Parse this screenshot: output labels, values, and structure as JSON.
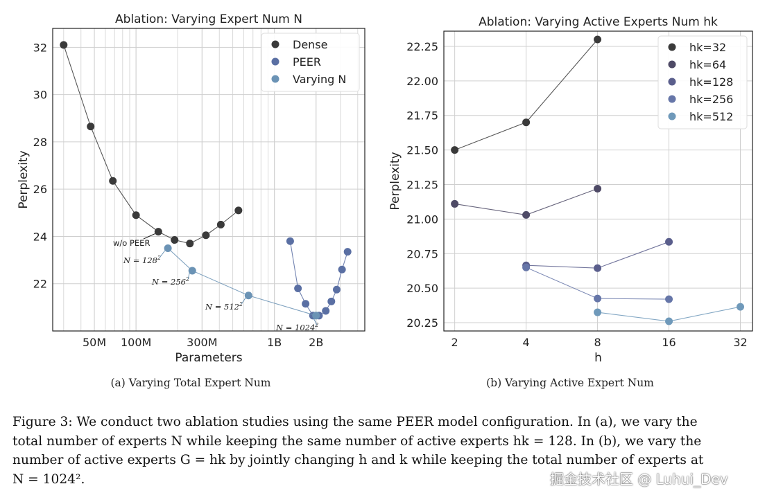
{
  "chart_data": [
    {
      "id": "left",
      "type": "scatter",
      "title": "Ablation: Varying Expert Num N",
      "xlabel": "Parameters",
      "ylabel": "Perplexity",
      "xscale": "log",
      "xlim": [
        25000000,
        4500000000
      ],
      "ylim": [
        20.0,
        32.8
      ],
      "xticks": [
        {
          "value": 50000000,
          "label": "50M"
        },
        {
          "value": 100000000,
          "label": "100M"
        },
        {
          "value": 300000000,
          "label": "300M"
        },
        {
          "value": 1000000000,
          "label": "1B"
        },
        {
          "value": 2000000000,
          "label": "2B"
        }
      ],
      "yticks": [
        22,
        24,
        26,
        28,
        30,
        32
      ],
      "legend": {
        "position": "top-right",
        "entries": [
          "Dense",
          "PEER",
          "Varying N"
        ]
      },
      "caption": "(a) Varying Total Expert Num",
      "series": [
        {
          "name": "Dense",
          "color": "#3a3a3a",
          "connected": true,
          "x": [
            30000000,
            47000000,
            68000000,
            100000000,
            145000000,
            190000000,
            245000000,
            320000000,
            410000000,
            550000000
          ],
          "y": [
            32.1,
            28.65,
            26.35,
            24.9,
            24.2,
            23.85,
            23.7,
            24.05,
            24.5,
            25.1
          ]
        },
        {
          "name": "PEER",
          "color": "#5a6fa3",
          "connected": true,
          "x": [
            1300000000,
            1480000000,
            1680000000,
            1900000000,
            2100000000,
            2350000000,
            2580000000,
            2820000000,
            3080000000,
            3380000000
          ],
          "y": [
            23.8,
            21.8,
            21.15,
            20.65,
            20.65,
            20.85,
            21.25,
            21.75,
            22.6,
            23.35
          ]
        },
        {
          "name": "Varying N",
          "color": "#6b93b5",
          "connected": true,
          "x": [
            170000000,
            255000000,
            650000000,
            2000000000
          ],
          "y": [
            23.5,
            22.55,
            21.5,
            20.65
          ]
        }
      ],
      "annotations": [
        {
          "text": "w/o PEER"
        },
        {
          "text": "N = 128"
        },
        {
          "text": "N = 256"
        },
        {
          "text": "N = 512"
        },
        {
          "text": "N = 1024"
        }
      ],
      "annotation_exponent": "2"
    },
    {
      "id": "right",
      "type": "scatter",
      "title": "Ablation: Varying Active Experts Num hk",
      "xlabel": "h",
      "ylabel": "Perplexity",
      "xscale": "log2",
      "xlim": [
        1.8,
        36
      ],
      "ylim": [
        20.19,
        22.36
      ],
      "xticks": [
        {
          "value": 2,
          "label": "2"
        },
        {
          "value": 4,
          "label": "4"
        },
        {
          "value": 8,
          "label": "8"
        },
        {
          "value": 16,
          "label": "16"
        },
        {
          "value": 32,
          "label": "32"
        }
      ],
      "yticks": [
        20.25,
        20.5,
        20.75,
        21.0,
        21.25,
        21.5,
        21.75,
        22.0,
        22.25
      ],
      "ytick_labels": [
        "20.25",
        "20.50",
        "20.75",
        "21.00",
        "21.25",
        "21.50",
        "21.75",
        "22.00",
        "22.25"
      ],
      "legend": {
        "position": "top-right",
        "entries": [
          "hk=32",
          "hk=64",
          "hk=128",
          "hk=256",
          "hk=512"
        ]
      },
      "caption": "(b) Varying Active Expert Num",
      "series": [
        {
          "name": "hk=32",
          "color": "#3a3a3a",
          "x": [
            2,
            4,
            8
          ],
          "y": [
            21.5,
            21.7,
            22.3
          ]
        },
        {
          "name": "hk=64",
          "color": "#4e4a66",
          "x": [
            2,
            4,
            8
          ],
          "y": [
            21.11,
            21.03,
            21.22
          ]
        },
        {
          "name": "hk=128",
          "color": "#5a5e8c",
          "x": [
            4,
            8,
            16
          ],
          "y": [
            20.665,
            20.645,
            20.835
          ]
        },
        {
          "name": "hk=256",
          "color": "#6676a8",
          "x": [
            4,
            8,
            16
          ],
          "y": [
            20.65,
            20.425,
            20.42
          ]
        },
        {
          "name": "hk=512",
          "color": "#6f99ba",
          "x": [
            8,
            16,
            32
          ],
          "y": [
            20.325,
            20.26,
            20.365
          ]
        }
      ]
    }
  ],
  "caption": {
    "lines": [
      "Figure 3: We conduct two ablation studies using the same PEER model configuration. In (a), we vary the",
      "total number of experts N while keeping the same number of active experts hk = 128. In (b), we vary the",
      "number of active experts G = hk by jointly changing h and k while keeping the total number of experts at",
      "N = 1024²."
    ]
  },
  "watermark": "掘金技术社区 @ Luhui_Dev"
}
